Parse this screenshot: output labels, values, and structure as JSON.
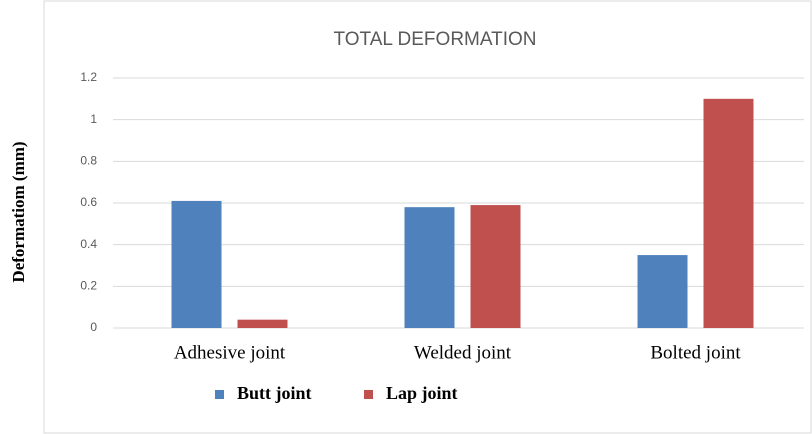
{
  "chart_data": {
    "type": "bar",
    "title": "TOTAL DEFORMATION",
    "y_label": "Deformatiom (mm)",
    "categories": [
      "Adhesive joint",
      "Welded joint",
      "Bolted joint"
    ],
    "series": [
      {
        "name": "Butt joint",
        "color": "#4f81bd",
        "values": [
          0.61,
          0.58,
          0.35
        ]
      },
      {
        "name": "Lap joint",
        "color": "#c0504d",
        "values": [
          0.04,
          0.59,
          1.1
        ]
      }
    ],
    "ylim": [
      0,
      1.2
    ],
    "yticks": [
      0,
      0.2,
      0.4,
      0.6,
      0.8,
      1,
      1.2
    ],
    "grid": true,
    "legend": "bottom"
  }
}
